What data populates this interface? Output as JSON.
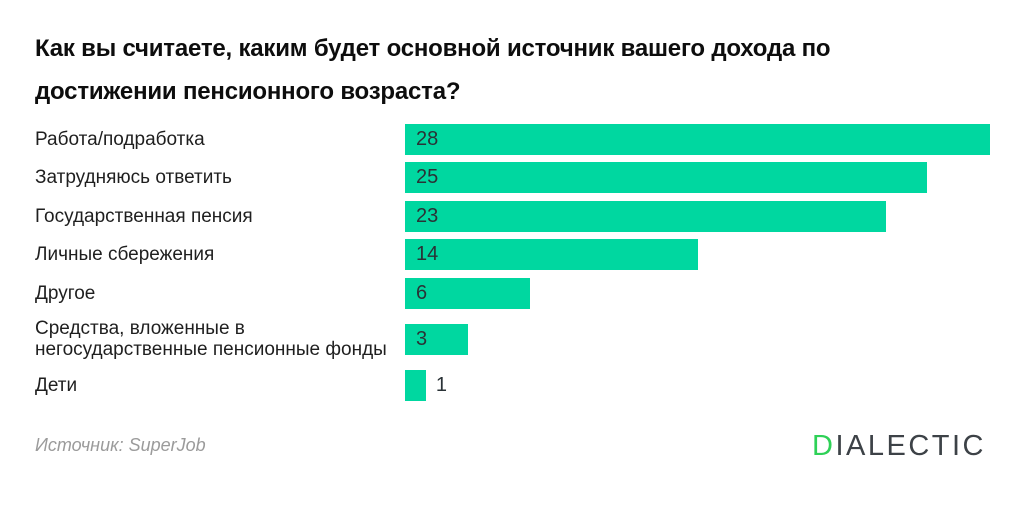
{
  "title_lines": [
    "Как вы считаете, каким будет основной источник вашего дохода по",
    "достижении пенсионного возраста?"
  ],
  "source_caption": "Источник: SuperJob",
  "logo": {
    "first_letter": "D",
    "rest": "IALECTIC"
  },
  "colors": {
    "bar": "#00d7a0",
    "value_text": "#2a3236",
    "logo_accent": "#2ed157",
    "logo_text": "#3d4247",
    "source_text": "#9b9b9b"
  },
  "chart_data": {
    "type": "bar",
    "orientation": "horizontal",
    "title": "Как вы считаете, каким будет основной источник вашего дохода по достижении пенсионного возраста?",
    "categories": [
      "Работа/подработка",
      "Затрудняюсь ответить",
      "Государственная пенсия",
      "Личные сбережения",
      "Другое",
      "Средства, вложенные в негосударственные пенсионные фонды",
      "Дети"
    ],
    "values": [
      28,
      25,
      23,
      14,
      6,
      3,
      1
    ],
    "xlabel": "",
    "ylabel": "",
    "xlim": [
      0,
      28
    ],
    "grid": false,
    "legend": false,
    "value_label_position": "inside bar at left; outside bar for smallest value",
    "source": "SuperJob"
  }
}
